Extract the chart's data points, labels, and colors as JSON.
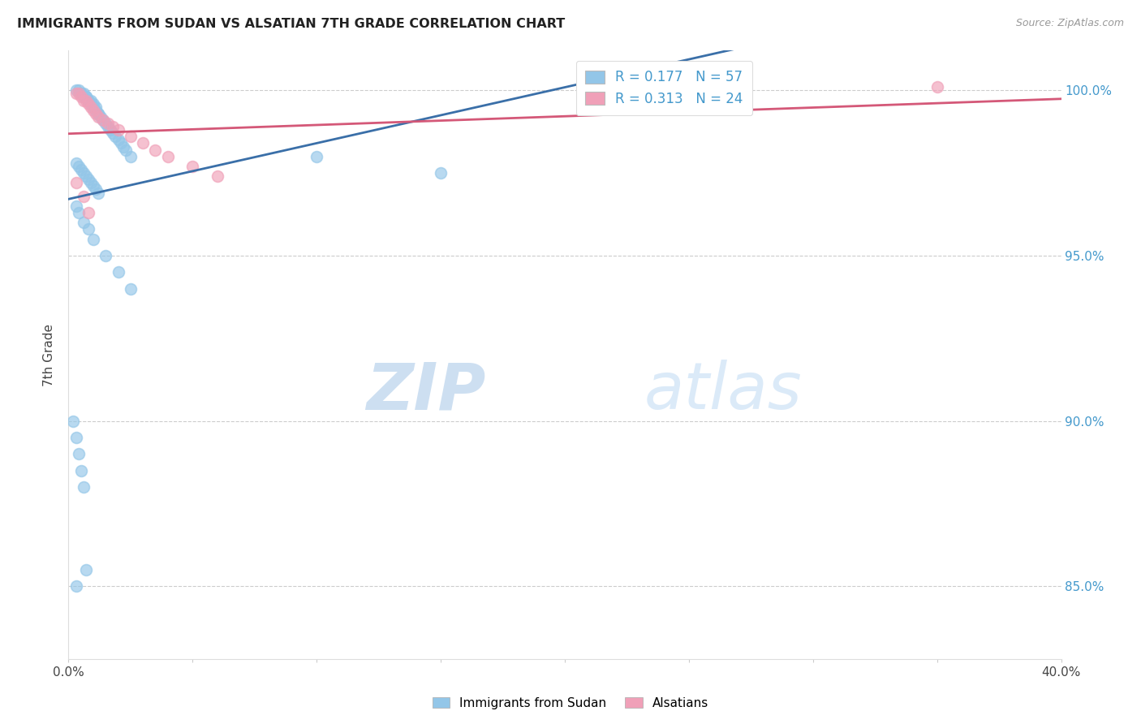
{
  "title": "IMMIGRANTS FROM SUDAN VS ALSATIAN 7TH GRADE CORRELATION CHART",
  "source": "Source: ZipAtlas.com",
  "ylabel": "7th Grade",
  "ytick_values": [
    0.85,
    0.9,
    0.95,
    1.0
  ],
  "xlim": [
    0.0,
    0.4
  ],
  "ylim": [
    0.828,
    1.012
  ],
  "blue_color": "#93C6E8",
  "pink_color": "#F0A0B8",
  "blue_line_color": "#3A6FA8",
  "pink_line_color": "#D45878",
  "legend_blue_R": "0.177",
  "legend_blue_N": "57",
  "legend_pink_R": "0.313",
  "legend_pink_N": "24",
  "legend_value_color": "#4499CC",
  "blue_scatter_x": [
    0.003,
    0.004,
    0.005,
    0.005,
    0.006,
    0.006,
    0.007,
    0.007,
    0.008,
    0.008,
    0.009,
    0.009,
    0.01,
    0.01,
    0.011,
    0.011,
    0.012,
    0.012,
    0.013,
    0.014,
    0.015,
    0.016,
    0.017,
    0.018,
    0.019,
    0.02,
    0.021,
    0.022,
    0.023,
    0.025,
    0.003,
    0.004,
    0.005,
    0.006,
    0.007,
    0.008,
    0.009,
    0.01,
    0.011,
    0.012,
    0.003,
    0.004,
    0.006,
    0.008,
    0.01,
    0.015,
    0.02,
    0.025,
    0.1,
    0.15,
    0.002,
    0.003,
    0.004,
    0.005,
    0.006,
    0.007,
    0.003
  ],
  "blue_scatter_y": [
    1.0,
    1.0,
    0.999,
    0.999,
    0.999,
    0.998,
    0.998,
    0.998,
    0.997,
    0.997,
    0.997,
    0.996,
    0.996,
    0.995,
    0.995,
    0.994,
    0.993,
    0.993,
    0.992,
    0.991,
    0.99,
    0.989,
    0.988,
    0.987,
    0.986,
    0.985,
    0.984,
    0.983,
    0.982,
    0.98,
    0.978,
    0.977,
    0.976,
    0.975,
    0.974,
    0.973,
    0.972,
    0.971,
    0.97,
    0.969,
    0.965,
    0.963,
    0.96,
    0.958,
    0.955,
    0.95,
    0.945,
    0.94,
    0.98,
    0.975,
    0.9,
    0.895,
    0.89,
    0.885,
    0.88,
    0.855,
    0.85
  ],
  "pink_scatter_x": [
    0.003,
    0.004,
    0.005,
    0.006,
    0.007,
    0.008,
    0.009,
    0.01,
    0.011,
    0.012,
    0.014,
    0.016,
    0.018,
    0.02,
    0.025,
    0.03,
    0.035,
    0.04,
    0.05,
    0.06,
    0.003,
    0.006,
    0.35,
    0.008
  ],
  "pink_scatter_y": [
    0.999,
    0.999,
    0.998,
    0.997,
    0.997,
    0.996,
    0.995,
    0.994,
    0.993,
    0.992,
    0.991,
    0.99,
    0.989,
    0.988,
    0.986,
    0.984,
    0.982,
    0.98,
    0.977,
    0.974,
    0.972,
    0.968,
    1.001,
    0.963
  ],
  "watermark_zip": "ZIP",
  "watermark_atlas": "atlas",
  "grid_color": "#CCCCCC",
  "bottom_legend_labels": [
    "Immigrants from Sudan",
    "Alsatians"
  ]
}
